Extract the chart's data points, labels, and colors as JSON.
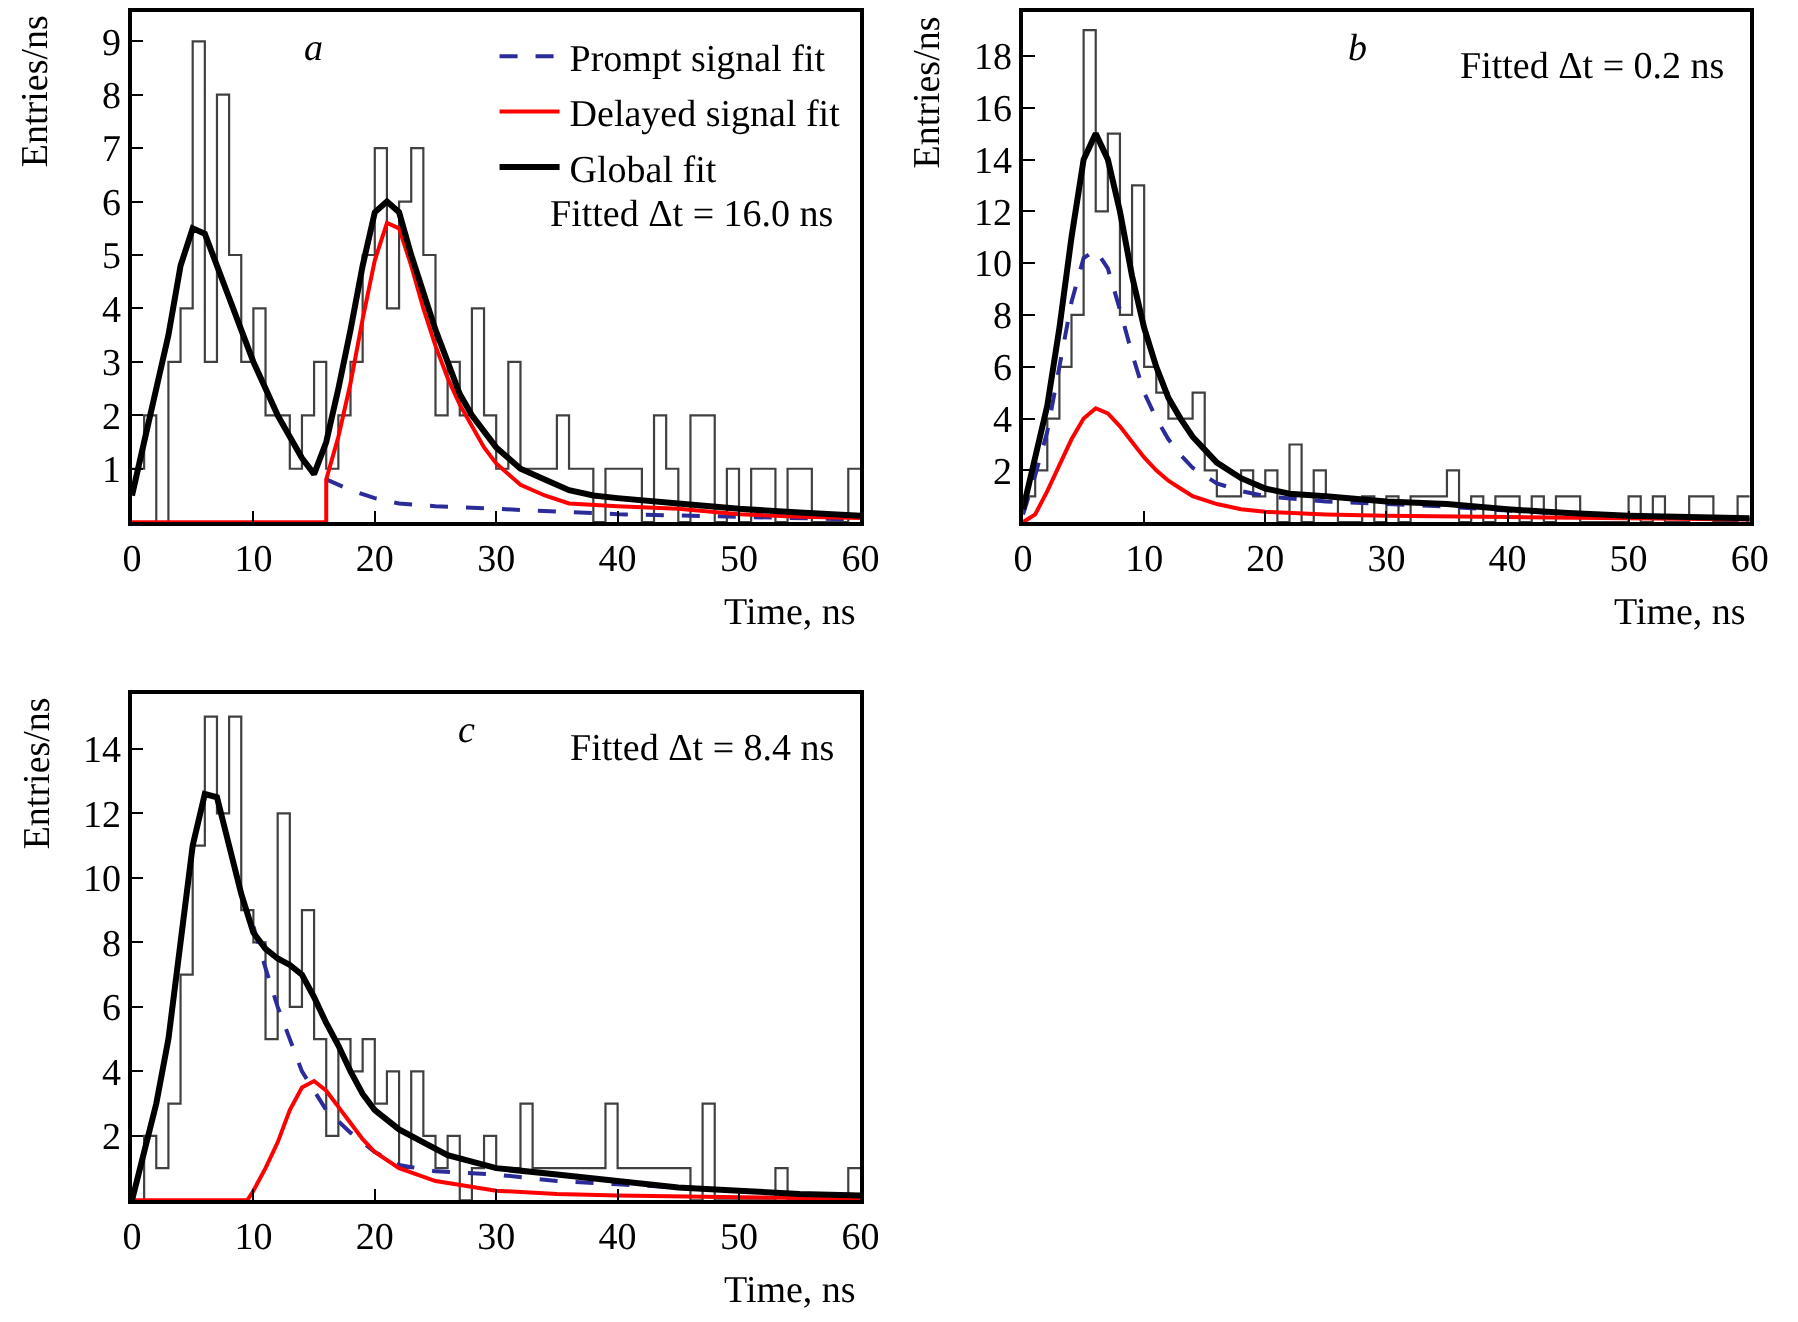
{
  "chart_data": [
    {
      "type": "step",
      "xlabel": "Time, ns",
      "ylabel": "Entries/ns",
      "xlim": [
        0,
        60
      ],
      "xticks": [
        0,
        10,
        20,
        30,
        40,
        50,
        60
      ],
      "ylim": [
        0,
        9.55
      ],
      "yticks": [
        1,
        2,
        3,
        4,
        5,
        6,
        7,
        8,
        9
      ],
      "legend": "top right",
      "annotations": [
        "a",
        "Fitted Δt = 16.0 ns"
      ],
      "series": [
        {
          "color": "#404040",
          "x": [
            0,
            1,
            2,
            3,
            4,
            5,
            6,
            7,
            8,
            9,
            10,
            11,
            12,
            13,
            14,
            15,
            16,
            17,
            18,
            19,
            20,
            21,
            22,
            23,
            24,
            25,
            26,
            27,
            28,
            29,
            30,
            31,
            32,
            33,
            34,
            35,
            36,
            37,
            38,
            39,
            40,
            41,
            42,
            43,
            44,
            45,
            46,
            47,
            48,
            49,
            50,
            51,
            52,
            53,
            54,
            55,
            56,
            57,
            58,
            59,
            60
          ],
          "values": [
            1,
            2,
            0,
            3,
            4,
            9,
            3,
            8,
            5,
            3,
            4,
            2,
            2,
            1,
            2,
            3,
            1,
            2,
            3,
            5,
            7,
            4,
            6,
            7,
            5,
            2,
            3,
            2,
            4,
            2,
            1,
            3,
            1,
            1,
            1,
            2,
            1,
            1,
            0,
            1,
            1,
            1,
            0,
            2,
            1,
            0,
            2,
            2,
            0,
            1,
            0,
            1,
            1,
            0,
            1,
            1,
            0,
            0,
            0,
            1,
            1
          ]
        },
        {
          "type": "line",
          "name": "Prompt signal fit",
          "color": "#2b2b9a",
          "line_style": "dashed",
          "x": [
            16,
            18,
            20,
            22,
            25,
            30,
            35,
            40,
            50,
            60
          ],
          "values": [
            0.8,
            0.6,
            0.45,
            0.35,
            0.3,
            0.25,
            0.2,
            0.15,
            0.1,
            0.05
          ]
        },
        {
          "type": "line",
          "name": "Delayed signal fit",
          "color": "#ff0000",
          "x": [
            0,
            16,
            16,
            17,
            18,
            19,
            20,
            21,
            22,
            23,
            24,
            25,
            26,
            27,
            28,
            29,
            30,
            32,
            34,
            36,
            40,
            45,
            50,
            55,
            60
          ],
          "values": [
            0,
            0,
            0.8,
            1.6,
            2.6,
            3.8,
            4.9,
            5.6,
            5.5,
            4.8,
            4.0,
            3.3,
            2.7,
            2.2,
            1.8,
            1.4,
            1.1,
            0.7,
            0.5,
            0.35,
            0.3,
            0.25,
            0.15,
            0.1,
            0.08
          ]
        },
        {
          "type": "line",
          "name": "Global fit",
          "color": "#000000",
          "x": [
            0,
            1,
            2,
            3,
            4,
            5,
            6,
            7,
            8,
            9,
            10,
            11,
            12,
            13,
            14,
            15,
            16,
            17,
            18,
            19,
            20,
            21,
            22,
            23,
            24,
            25,
            26,
            27,
            28,
            29,
            30,
            32,
            34,
            36,
            38,
            40,
            45,
            50,
            55,
            60
          ],
          "values": [
            0.5,
            1.5,
            2.5,
            3.5,
            4.8,
            5.5,
            5.4,
            4.8,
            4.2,
            3.6,
            3.0,
            2.5,
            2.0,
            1.6,
            1.2,
            0.9,
            1.5,
            2.5,
            3.6,
            4.8,
            5.8,
            6.0,
            5.8,
            5.0,
            4.3,
            3.6,
            3.0,
            2.4,
            2.0,
            1.7,
            1.4,
            1.0,
            0.8,
            0.6,
            0.5,
            0.45,
            0.35,
            0.25,
            0.18,
            0.12
          ]
        }
      ]
    },
    {
      "type": "step",
      "xlabel": "Time, ns",
      "ylabel": "Entries/ns",
      "xlim": [
        0,
        60
      ],
      "xticks": [
        0,
        10,
        20,
        30,
        40,
        50,
        60
      ],
      "ylim": [
        0,
        19.7
      ],
      "yticks": [
        2,
        4,
        6,
        8,
        10,
        12,
        14,
        16,
        18
      ],
      "annotations": [
        "b",
        "Fitted Δt = 0.2 ns"
      ],
      "series": [
        {
          "color": "#404040",
          "x": [
            0,
            1,
            2,
            3,
            4,
            5,
            6,
            7,
            8,
            9,
            10,
            11,
            12,
            13,
            14,
            15,
            16,
            17,
            18,
            19,
            20,
            21,
            22,
            23,
            24,
            25,
            26,
            27,
            28,
            29,
            30,
            31,
            32,
            33,
            34,
            35,
            36,
            37,
            38,
            39,
            40,
            41,
            42,
            43,
            44,
            45,
            46,
            47,
            48,
            49,
            50,
            51,
            52,
            53,
            54,
            55,
            56,
            57,
            58,
            59,
            60
          ],
          "values": [
            1,
            2,
            4,
            6,
            8,
            19,
            12,
            15,
            8,
            13,
            6,
            5,
            4,
            4,
            5,
            2,
            1,
            1,
            2,
            1,
            2,
            0,
            3,
            0,
            2,
            1,
            0,
            0,
            1,
            0,
            1,
            0,
            1,
            1,
            1,
            2,
            0,
            1,
            0,
            1,
            1,
            0,
            1,
            0,
            1,
            1,
            0,
            0,
            0,
            0,
            1,
            0,
            1,
            0,
            0,
            1,
            1,
            0,
            0,
            1,
            1
          ]
        },
        {
          "type": "line",
          "color": "#2b2b9a",
          "line_style": "dashed",
          "x": [
            0,
            1,
            2,
            3,
            4,
            5,
            6,
            7,
            8,
            9,
            10,
            11,
            12,
            13,
            14,
            15,
            16,
            18,
            20,
            25,
            30,
            35,
            40,
            50,
            60
          ],
          "values": [
            0.3,
            1.8,
            3.5,
            6,
            8.5,
            10.2,
            10.5,
            9.8,
            8.2,
            6.5,
            5,
            4,
            3.2,
            2.6,
            2.1,
            1.8,
            1.5,
            1.2,
            1,
            0.8,
            0.7,
            0.6,
            0.45,
            0.2,
            0.1
          ]
        },
        {
          "type": "line",
          "color": "#ff0000",
          "x": [
            0,
            1,
            2,
            3,
            4,
            5,
            6,
            7,
            8,
            9,
            10,
            11,
            12,
            13,
            14,
            16,
            18,
            20,
            25,
            30,
            40,
            50,
            60
          ],
          "values": [
            0,
            0.3,
            1.2,
            2.2,
            3.2,
            4,
            4.4,
            4.2,
            3.7,
            3.1,
            2.5,
            2,
            1.6,
            1.3,
            1,
            0.7,
            0.5,
            0.4,
            0.3,
            0.25,
            0.2,
            0.15,
            0.1
          ]
        },
        {
          "type": "line",
          "color": "#000000",
          "x": [
            0,
            1,
            2,
            3,
            4,
            5,
            6,
            7,
            8,
            9,
            10,
            11,
            12,
            13,
            14,
            15,
            16,
            18,
            20,
            22,
            25,
            30,
            35,
            40,
            45,
            50,
            55,
            60
          ],
          "values": [
            0.5,
            2.5,
            4.5,
            7.5,
            11,
            14,
            15,
            14,
            12,
            9.5,
            7.5,
            6,
            4.8,
            4,
            3.3,
            2.8,
            2.3,
            1.7,
            1.3,
            1.1,
            1,
            0.8,
            0.7,
            0.5,
            0.35,
            0.25,
            0.2,
            0.15
          ]
        }
      ]
    },
    {
      "type": "step",
      "xlabel": "Time, ns",
      "ylabel": "Entries/ns",
      "xlim": [
        0,
        60
      ],
      "xticks": [
        0,
        10,
        20,
        30,
        40,
        50,
        60
      ],
      "ylim": [
        0,
        15.7
      ],
      "yticks": [
        2,
        4,
        6,
        8,
        10,
        12,
        14
      ],
      "annotations": [
        "c",
        "Fitted Δt = 8.4 ns"
      ],
      "series": [
        {
          "color": "#404040",
          "x": [
            0,
            1,
            2,
            3,
            4,
            5,
            6,
            7,
            8,
            9,
            10,
            11,
            12,
            13,
            14,
            15,
            16,
            17,
            18,
            19,
            20,
            21,
            22,
            23,
            24,
            25,
            26,
            27,
            28,
            29,
            30,
            31,
            32,
            33,
            34,
            35,
            36,
            37,
            38,
            39,
            40,
            41,
            42,
            43,
            44,
            45,
            46,
            47,
            48,
            49,
            50,
            51,
            52,
            53,
            54,
            55,
            56,
            57,
            58,
            59,
            60
          ],
          "values": [
            0,
            2,
            1,
            3,
            7,
            11,
            15,
            12,
            15,
            9,
            8,
            5,
            12,
            6,
            9,
            5,
            2,
            5,
            4,
            5,
            3,
            4,
            1,
            4,
            2,
            1,
            2,
            0,
            1,
            2,
            1,
            1,
            3,
            1,
            1,
            1,
            1,
            1,
            1,
            3,
            1,
            1,
            1,
            1,
            1,
            1,
            0,
            3,
            0,
            0,
            0,
            0,
            0,
            1,
            0,
            0,
            0,
            0,
            0,
            1,
            1
          ]
        },
        {
          "type": "line",
          "color": "#2b2b9a",
          "line_style": "dashed",
          "x": [
            10,
            11,
            12,
            13,
            14,
            15,
            16,
            18,
            20,
            22,
            25,
            30,
            35,
            40,
            45,
            50,
            60
          ],
          "values": [
            8.5,
            7.2,
            6,
            5,
            4,
            3.4,
            2.8,
            2.1,
            1.5,
            1.1,
            0.9,
            0.8,
            0.6,
            0.5,
            0.4,
            0.3,
            0.1
          ]
        },
        {
          "type": "line",
          "color": "#ff0000",
          "x": [
            0,
            9.5,
            10,
            11,
            12,
            13,
            14,
            15,
            16,
            17,
            18,
            19,
            20,
            22,
            25,
            30,
            35,
            40,
            50,
            60
          ],
          "values": [
            0,
            0,
            0.3,
            1,
            1.8,
            2.8,
            3.5,
            3.7,
            3.4,
            2.9,
            2.4,
            1.9,
            1.5,
            1,
            0.6,
            0.3,
            0.2,
            0.15,
            0.1,
            0.05
          ]
        },
        {
          "type": "line",
          "color": "#000000",
          "x": [
            0,
            1,
            2,
            3,
            4,
            5,
            6,
            7,
            8,
            9,
            10,
            11,
            12,
            13,
            14,
            15,
            16,
            17,
            18,
            19,
            20,
            22,
            24,
            26,
            28,
            30,
            35,
            40,
            45,
            50,
            55,
            60
          ],
          "values": [
            0,
            1.5,
            3,
            5,
            8,
            11,
            12.6,
            12.5,
            11,
            9.5,
            8.3,
            7.8,
            7.5,
            7.3,
            7,
            6.3,
            5.5,
            4.8,
            4,
            3.3,
            2.8,
            2.2,
            1.8,
            1.4,
            1.2,
            1,
            0.8,
            0.6,
            0.4,
            0.3,
            0.2,
            0.15
          ]
        }
      ]
    }
  ]
}
